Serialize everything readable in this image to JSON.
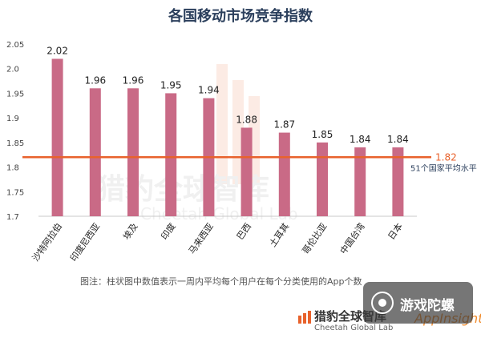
{
  "chart_data": {
    "type": "bar",
    "title": "各国移动市场竞争指数",
    "categories": [
      "沙特阿拉伯",
      "印度尼西亚",
      "埃及",
      "印度",
      "马来西亚",
      "巴西",
      "土耳其",
      "哥伦比亚",
      "中国台湾",
      "日本"
    ],
    "values": [
      2.02,
      1.96,
      1.96,
      1.95,
      1.94,
      1.88,
      1.87,
      1.85,
      1.84,
      1.84
    ],
    "data_labels": [
      "2.02",
      "1.96",
      "1.96",
      "1.95",
      "1.94",
      "1.88",
      "1.87",
      "1.85",
      "1.84",
      "1.84"
    ],
    "y_ticks": [
      "2.05",
      "2.0",
      "1.95",
      "1.9",
      "1.85",
      "1.8",
      "1.75",
      "1.7"
    ],
    "ylim": [
      1.7,
      2.05
    ],
    "reference_line": {
      "value": 1.82,
      "value_label": "1.82",
      "label": "51个国家平均水平",
      "color": "#e8622c"
    },
    "bar_color": "#c96a86",
    "grid": false,
    "footnote": "图注：柱状图中数值表示一周内平均每个用户在每个分类使用的App个数"
  },
  "watermark_bg": {
    "line1": "猎豹全球智库",
    "line2": "Cheetah Global Lab"
  },
  "logo": {
    "name": "猎豹全球智库",
    "sub": "Cheetah Global Lab",
    "app": "AppInsight"
  },
  "overlay": {
    "text": "游戏陀螺"
  }
}
